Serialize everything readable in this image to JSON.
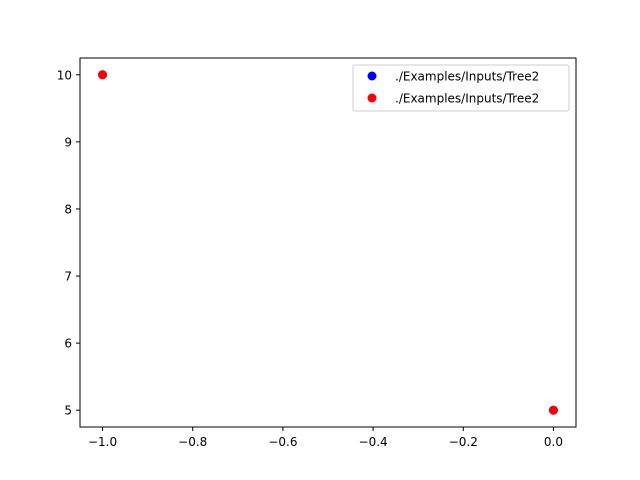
{
  "chart_data": {
    "type": "scatter",
    "title": "",
    "xlabel": "",
    "ylabel": "",
    "xlim": [
      -1.05,
      0.05
    ],
    "ylim": [
      4.75,
      10.25
    ],
    "xticks": [
      -1.0,
      -0.8,
      -0.6,
      -0.4,
      -0.2,
      0.0
    ],
    "xtick_labels": [
      "−1.0",
      "−0.8",
      "−0.6",
      "−0.4",
      "−0.2",
      "0.0"
    ],
    "yticks": [
      5,
      6,
      7,
      8,
      9,
      10
    ],
    "ytick_labels": [
      "5",
      "6",
      "7",
      "8",
      "9",
      "10"
    ],
    "grid": false,
    "legend_position": "top-right",
    "series": [
      {
        "name": "./Examples/Inputs/Tree2",
        "color": "#0000ff",
        "points": [
          [
            -1.0,
            10
          ],
          [
            0.0,
            5
          ]
        ]
      },
      {
        "name": "./Examples/Inputs/Tree2",
        "color": "#ff0000",
        "points": [
          [
            -1.0,
            10
          ],
          [
            0.0,
            5
          ]
        ]
      }
    ]
  }
}
